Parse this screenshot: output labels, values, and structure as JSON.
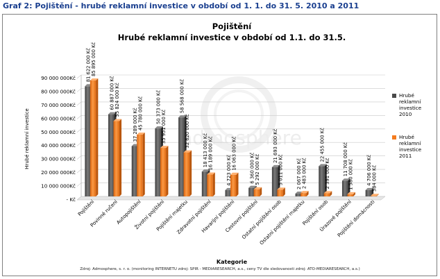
{
  "figure_title": "Graf 2: Pojištění - hrubé reklamní investice v období od 1. 1. do 31. 5. 2010 a 2011",
  "source_note": "Zdroj: Admosphere, s. r. o. (monitoring INTERNETU zdroj: SPIR - MEDIARESEARCH, a.s., ceny TV dle sledovanosti zdroj: ATO-MEDIARESEARCH, a.s.)",
  "watermark": "admosphere",
  "colors": {
    "series_2010": "#5a5a5a",
    "series_2011": "#f47c1e",
    "grid": "#c8c8c8",
    "title": "#1a3f8f"
  },
  "chart_data": {
    "type": "bar",
    "title": "Pojištění",
    "subtitle": "Hrubé reklamní investice v období od 1.1. do 31.5.",
    "xlabel": "Kategorie",
    "ylabel": "Hrubé reklamní investice",
    "ylim": [
      0,
      90000000
    ],
    "yticks": [
      "- Kč",
      "10 000 000Kč",
      "20 000 000Kč",
      "30 000 000Kč",
      "40 000 000Kč",
      "50 000 000Kč",
      "60 000 000Kč",
      "70 000 000Kč",
      "80 000 000Kč",
      "90 000 000Kč"
    ],
    "grid": true,
    "legend_position": "right",
    "categories": [
      "Pojištění",
      "Povinné ručení",
      "Autopojištění",
      "Životní pojištění",
      "Pojištění majetku",
      "Zdravotní pojištění",
      "Havarijní pojištění",
      "Cestovní pojištění",
      "Ostatní pojištění osob",
      "Ostatní pojištění majetku",
      "Pojištění osob",
      "Úrazové pojištění",
      "Pojištění domácnosti"
    ],
    "series": [
      {
        "name": "Hrubé reklamní investice 2010",
        "values": [
          81622000,
          60887000,
          37289000,
          50373000,
          58568000,
          18413000,
          4723000,
          6360000,
          21693000,
          2067000,
          22455000,
          11708000,
          4706000
        ],
        "labels": [
          "81 622 000 Kč",
          "60 887 000 Kč",
          "37 289 000 Kč",
          "50 373 000 Kč",
          "58 568 000 Kč",
          "18 413 000 Kč",
          "4 723 000 Kč",
          "6 360 000 Kč",
          "21 693 000 Kč",
          "2 067 000 Kč",
          "22 455 000 Kč",
          "11 708 000 Kč",
          "4 706 000 Kč"
        ]
      },
      {
        "name": "Hrubé reklamní investice 2011",
        "values": [
          85895000,
          55824000,
          45780000,
          35951000,
          32620000,
          16189000,
          16063000,
          5292000,
          5011000,
          2483000,
          2391000,
          1580000,
          384000
        ],
        "labels": [
          "85 895 000 Kč",
          "55 824 000 Kč",
          "45 780 000 Kč",
          "35 951 000 Kč",
          "32 620 000 Kč",
          "16 189 000 Kč",
          "16 063 000 Kč",
          "5 292 000 Kč",
          "5 011 000 Kč",
          "2 483 000 Kč",
          "2 391 000 Kč",
          "1 580 000 Kč",
          "384 000 Kč"
        ]
      }
    ]
  }
}
